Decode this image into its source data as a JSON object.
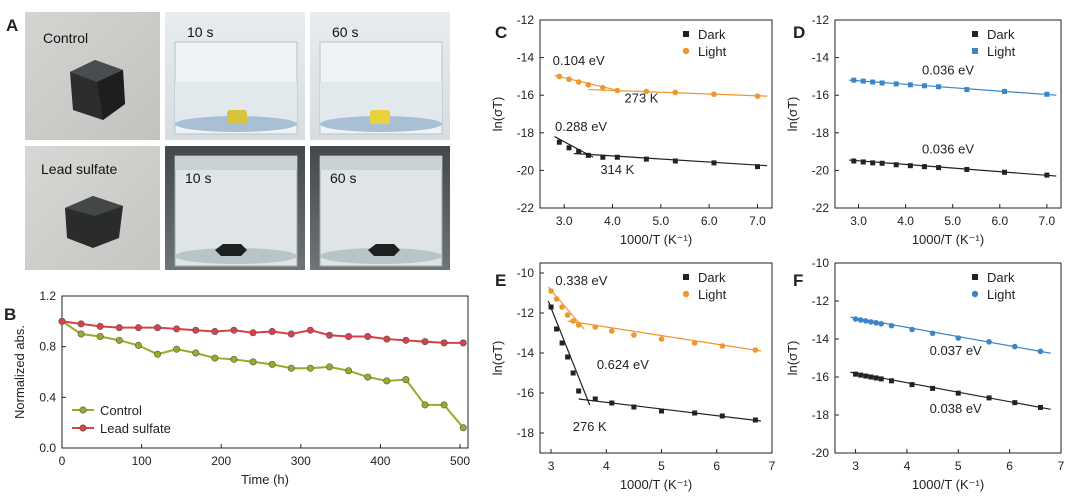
{
  "panel_letters": {
    "A": "A",
    "B": "B",
    "C": "C",
    "D": "D",
    "E": "E",
    "F": "F"
  },
  "photos": {
    "control_label": "Control",
    "lead_sulfate_label": "Lead sulfate",
    "time_10": "10 s",
    "time_60": "60 s"
  },
  "colors": {
    "dark": "#222222",
    "light_orange": "#f0962e",
    "light_blue": "#3a86c8",
    "control": "#9aaa2a",
    "lead": "#d9404a"
  },
  "chart_data": [
    {
      "id": "B",
      "type": "line",
      "xlabel": "Time (h)",
      "ylabel": "Normalized abs.",
      "xlim": [
        0,
        510
      ],
      "ylim": [
        0,
        1.2
      ],
      "xticks": [
        0,
        100,
        200,
        300,
        400,
        500
      ],
      "yticks": [
        0.0,
        0.4,
        0.8,
        1.2
      ],
      "xtick_labels": [
        "0",
        "100",
        "200",
        "300",
        "400",
        "500"
      ],
      "ytick_labels": [
        "0.0",
        "0.4",
        "0.8",
        "1.2"
      ],
      "legend": "bottom-left",
      "series": [
        {
          "name": "Control",
          "color": "#9aaa2a",
          "x": [
            0,
            24,
            48,
            72,
            96,
            120,
            144,
            168,
            192,
            216,
            240,
            264,
            288,
            312,
            336,
            360,
            384,
            408,
            432,
            456,
            480,
            504
          ],
          "y": [
            1.0,
            0.9,
            0.88,
            0.85,
            0.81,
            0.74,
            0.78,
            0.75,
            0.71,
            0.7,
            0.68,
            0.66,
            0.63,
            0.63,
            0.64,
            0.61,
            0.56,
            0.53,
            0.54,
            0.34,
            0.34,
            0.16
          ]
        },
        {
          "name": "Lead sulfate",
          "color": "#d9404a",
          "x": [
            0,
            24,
            48,
            72,
            96,
            120,
            144,
            168,
            192,
            216,
            240,
            264,
            288,
            312,
            336,
            360,
            384,
            408,
            432,
            456,
            480,
            504
          ],
          "y": [
            1.0,
            0.98,
            0.96,
            0.95,
            0.95,
            0.95,
            0.94,
            0.93,
            0.92,
            0.93,
            0.91,
            0.92,
            0.9,
            0.93,
            0.89,
            0.88,
            0.88,
            0.86,
            0.85,
            0.84,
            0.83,
            0.83
          ]
        }
      ]
    },
    {
      "id": "C",
      "type": "scatter",
      "xlabel": "1000/T (K⁻¹)",
      "ylabel": "ln(σT)",
      "xlim": [
        2.5,
        7.3
      ],
      "ylim": [
        -22,
        -12
      ],
      "xticks": [
        3,
        4,
        5,
        6,
        7
      ],
      "xtick_labels": [
        "3.0",
        "4.0",
        "5.0",
        "6.0",
        "7.0"
      ],
      "yticks": [
        -22,
        -20,
        -18,
        -16,
        -14,
        -12
      ],
      "ytick_labels": [
        "-22",
        "-20",
        "-18",
        "-16",
        "-14",
        "-12"
      ],
      "legend": "top-right",
      "series": [
        {
          "name": "Dark",
          "marker": "square",
          "color": "#222222",
          "x": [
            2.9,
            3.1,
            3.3,
            3.5,
            3.8,
            4.1,
            4.7,
            5.3,
            6.1,
            7.0
          ],
          "y": [
            -18.5,
            -18.8,
            -19.0,
            -19.2,
            -19.3,
            -19.3,
            -19.4,
            -19.5,
            -19.6,
            -19.8
          ]
        },
        {
          "name": "Light",
          "marker": "circle",
          "color": "#f0962e",
          "x": [
            2.9,
            3.1,
            3.3,
            3.5,
            3.8,
            4.1,
            4.7,
            5.3,
            6.1,
            7.0
          ],
          "y": [
            -15.0,
            -15.15,
            -15.3,
            -15.45,
            -15.6,
            -15.75,
            -15.8,
            -15.85,
            -15.95,
            -16.05
          ]
        }
      ],
      "fit_lines": [
        {
          "color": "#f0962e",
          "x": [
            2.8,
            4.2
          ],
          "y": [
            -14.95,
            -15.8
          ]
        },
        {
          "color": "#f0962e",
          "x": [
            3.5,
            7.2
          ],
          "y": [
            -15.7,
            -16.05
          ]
        },
        {
          "color": "#222222",
          "x": [
            2.8,
            3.6
          ],
          "y": [
            -18.2,
            -19.3
          ]
        },
        {
          "color": "#222222",
          "x": [
            3.2,
            7.2
          ],
          "y": [
            -19.1,
            -19.75
          ]
        }
      ],
      "annotations": [
        {
          "text": "0.104 eV",
          "x": 3.3,
          "y": -14.4
        },
        {
          "text": "273 K",
          "x": 4.6,
          "y": -16.4
        },
        {
          "text": "0.288 eV",
          "x": 3.35,
          "y": -17.9
        },
        {
          "text": "314 K",
          "x": 4.1,
          "y": -20.2
        }
      ]
    },
    {
      "id": "D",
      "type": "scatter",
      "xlabel": "1000/T (K⁻¹)",
      "ylabel": "ln(σT)",
      "xlim": [
        2.5,
        7.3
      ],
      "ylim": [
        -22,
        -12
      ],
      "xticks": [
        3,
        4,
        5,
        6,
        7
      ],
      "xtick_labels": [
        "3.0",
        "4.0",
        "5.0",
        "6.0",
        "7.0"
      ],
      "yticks": [
        -22,
        -20,
        -18,
        -16,
        -14,
        -12
      ],
      "ytick_labels": [
        "-22",
        "-20",
        "-18",
        "-16",
        "-14",
        "-12"
      ],
      "legend": "top-right",
      "series": [
        {
          "name": "Dark",
          "marker": "square",
          "color": "#222222",
          "x": [
            2.9,
            3.1,
            3.3,
            3.5,
            3.8,
            4.1,
            4.4,
            4.7,
            5.3,
            6.1,
            7.0
          ],
          "y": [
            -19.5,
            -19.55,
            -19.6,
            -19.62,
            -19.7,
            -19.75,
            -19.8,
            -19.85,
            -19.95,
            -20.1,
            -20.25
          ]
        },
        {
          "name": "Light",
          "marker": "square",
          "color": "#3a86c8",
          "x": [
            2.9,
            3.1,
            3.3,
            3.5,
            3.8,
            4.1,
            4.4,
            4.7,
            5.3,
            6.1,
            7.0
          ],
          "y": [
            -15.2,
            -15.25,
            -15.3,
            -15.35,
            -15.4,
            -15.45,
            -15.5,
            -15.55,
            -15.7,
            -15.8,
            -15.95
          ]
        }
      ],
      "fit_lines": [
        {
          "color": "#3a86c8",
          "x": [
            2.8,
            7.2
          ],
          "y": [
            -15.2,
            -16.0
          ]
        },
        {
          "color": "#222222",
          "x": [
            2.8,
            7.2
          ],
          "y": [
            -19.45,
            -20.3
          ]
        }
      ],
      "annotations": [
        {
          "text": "0.036 eV",
          "x": 4.9,
          "y": -14.9
        },
        {
          "text": "0.036 eV",
          "x": 4.9,
          "y": -19.1
        }
      ]
    },
    {
      "id": "E",
      "type": "scatter",
      "xlabel": "1000/T (K⁻¹)",
      "ylabel": "ln(σT)",
      "xlim": [
        2.8,
        7
      ],
      "ylim": [
        -19,
        -9.5
      ],
      "xticks": [
        3,
        4,
        5,
        6,
        7
      ],
      "xtick_labels": [
        "3",
        "4",
        "5",
        "6",
        "7"
      ],
      "yticks": [
        -18,
        -16,
        -14,
        -12,
        -10
      ],
      "ytick_labels": [
        "-18",
        "-16",
        "-14",
        "-12",
        "-10"
      ],
      "legend": "top-right",
      "series": [
        {
          "name": "Dark",
          "marker": "square",
          "color": "#222222",
          "x": [
            3.0,
            3.1,
            3.2,
            3.3,
            3.4,
            3.5,
            3.8,
            4.1,
            4.5,
            5.0,
            5.6,
            6.1,
            6.7
          ],
          "y": [
            -11.7,
            -12.8,
            -13.5,
            -14.2,
            -15.0,
            -15.9,
            -16.3,
            -16.5,
            -16.7,
            -16.9,
            -17.0,
            -17.15,
            -17.35
          ]
        },
        {
          "name": "Light",
          "marker": "circle",
          "color": "#f0962e",
          "x": [
            3.0,
            3.1,
            3.2,
            3.3,
            3.4,
            3.5,
            3.8,
            4.1,
            4.5,
            5.0,
            5.6,
            6.1,
            6.7
          ],
          "y": [
            -10.9,
            -11.3,
            -11.7,
            -12.1,
            -12.4,
            -12.6,
            -12.7,
            -12.9,
            -13.1,
            -13.3,
            -13.5,
            -13.65,
            -13.85
          ]
        }
      ],
      "fit_lines": [
        {
          "color": "#f0962e",
          "x": [
            2.95,
            3.6
          ],
          "y": [
            -10.7,
            -12.8
          ]
        },
        {
          "color": "#f0962e",
          "x": [
            3.3,
            6.8
          ],
          "y": [
            -12.4,
            -13.9
          ]
        },
        {
          "color": "#222222",
          "x": [
            2.95,
            3.7
          ],
          "y": [
            -11.4,
            -16.6
          ]
        },
        {
          "color": "#222222",
          "x": [
            3.5,
            6.8
          ],
          "y": [
            -16.3,
            -17.4
          ]
        }
      ],
      "annotations": [
        {
          "text": "0.338 eV",
          "x": 3.55,
          "y": -10.6
        },
        {
          "text": "0.624 eV",
          "x": 4.3,
          "y": -14.8
        },
        {
          "text": "276 K",
          "x": 3.7,
          "y": -17.9
        }
      ]
    },
    {
      "id": "F",
      "type": "scatter",
      "xlabel": "1000/T (K⁻¹)",
      "ylabel": "ln(σT)",
      "xlim": [
        2.6,
        7
      ],
      "ylim": [
        -20,
        -10
      ],
      "xticks": [
        3,
        4,
        5,
        6,
        7
      ],
      "xtick_labels": [
        "3",
        "4",
        "5",
        "6",
        "7"
      ],
      "yticks": [
        -20,
        -18,
        -16,
        -14,
        -12,
        -10
      ],
      "ytick_labels": [
        "-20",
        "-18",
        "-16",
        "-14",
        "-12",
        "-10"
      ],
      "legend": "top-right",
      "series": [
        {
          "name": "Dark",
          "marker": "square",
          "color": "#222222",
          "x": [
            3.0,
            3.1,
            3.2,
            3.3,
            3.4,
            3.5,
            3.7,
            4.1,
            4.5,
            5.0,
            5.6,
            6.1,
            6.6
          ],
          "y": [
            -15.85,
            -15.9,
            -15.95,
            -16.0,
            -16.05,
            -16.1,
            -16.2,
            -16.4,
            -16.6,
            -16.85,
            -17.1,
            -17.35,
            -17.6
          ]
        },
        {
          "name": "Light",
          "marker": "circle",
          "color": "#3a86c8",
          "x": [
            3.0,
            3.1,
            3.2,
            3.3,
            3.4,
            3.5,
            3.7,
            4.1,
            4.5,
            5.0,
            5.6,
            6.1,
            6.6
          ],
          "y": [
            -12.95,
            -13.0,
            -13.05,
            -13.1,
            -13.15,
            -13.2,
            -13.3,
            -13.5,
            -13.7,
            -13.95,
            -14.15,
            -14.4,
            -14.65
          ]
        }
      ],
      "fit_lines": [
        {
          "color": "#3a86c8",
          "x": [
            2.9,
            6.8
          ],
          "y": [
            -12.85,
            -14.75
          ]
        },
        {
          "color": "#222222",
          "x": [
            2.9,
            6.8
          ],
          "y": [
            -15.75,
            -17.7
          ]
        }
      ],
      "annotations": [
        {
          "text": "0.037 eV",
          "x": 4.95,
          "y": -14.85
        },
        {
          "text": "0.038 eV",
          "x": 4.95,
          "y": -17.9
        }
      ]
    }
  ]
}
